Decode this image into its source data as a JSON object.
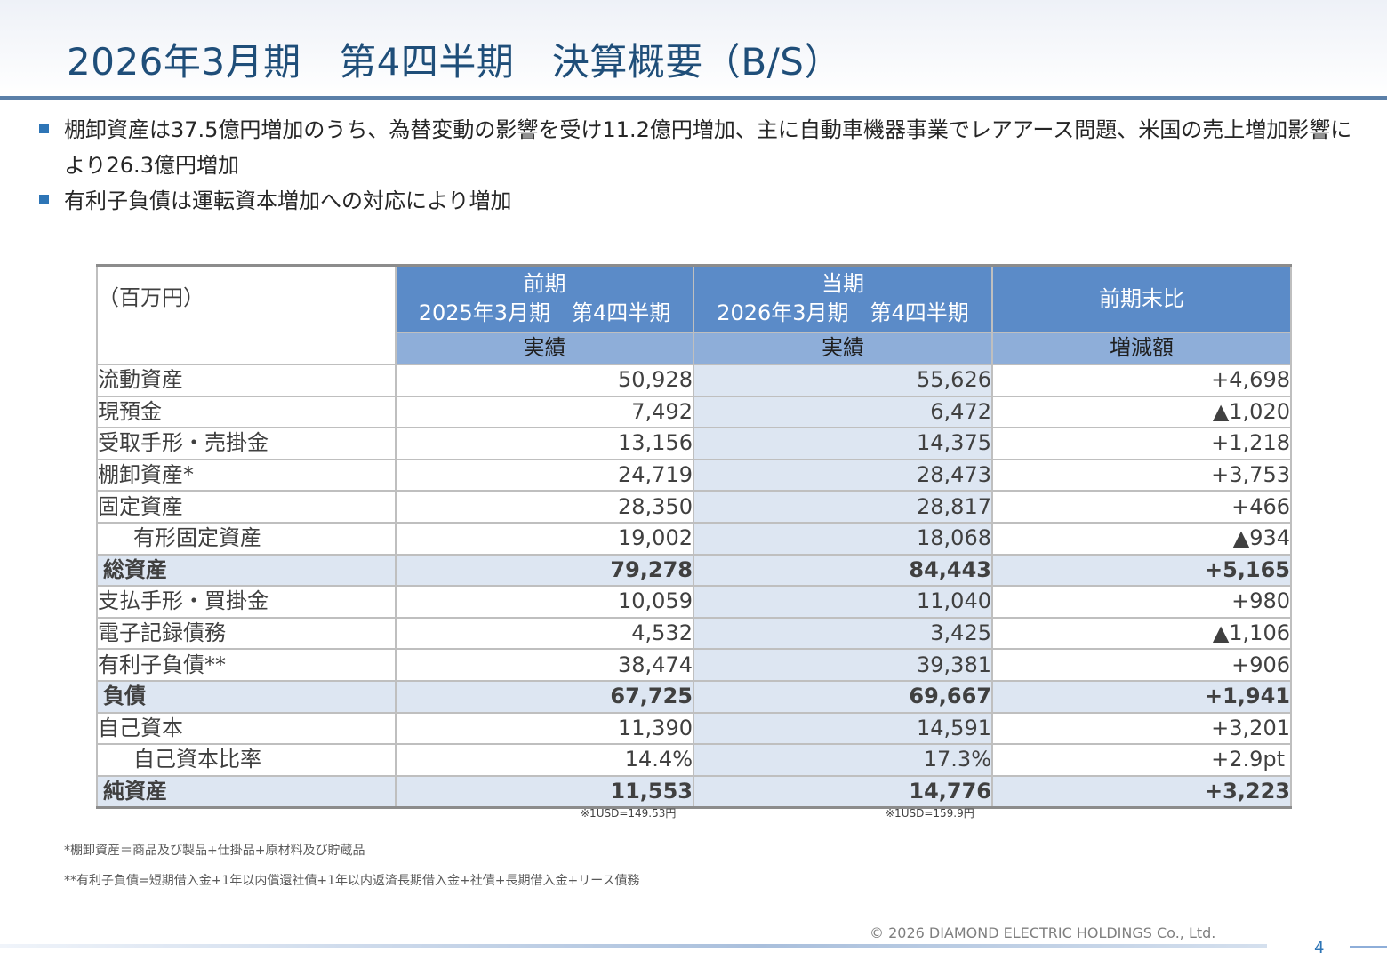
{
  "header": {
    "title": "2026年3月期　第4四半期　決算概要（B/S）"
  },
  "bullets": [
    "棚卸資産は37.5億円増加のうち、為替変動の影響を受け11.2億円増加、主に自動車機器事業でレアアース問題、米国の売上増加影響により26.3億円増加",
    "有利子負債は運転資本増加への対応により増加"
  ],
  "table": {
    "unit_label": "（百万円）",
    "prev_header_1": "前期",
    "prev_header_2": "2025年3月期　第4四半期",
    "curr_header_1": "当期",
    "curr_header_2": "2026年3月期　第4四半期",
    "diff_header": "前期末比",
    "prev_sub": "実績",
    "curr_sub": "実績",
    "diff_sub": "増減額",
    "rows": [
      {
        "label": "流動資産",
        "prev": "50,928",
        "curr": "55,626",
        "diff": "+4,698"
      },
      {
        "label": "現預金",
        "prev": "7,492",
        "curr": "6,472",
        "diff": "▲1,020"
      },
      {
        "label": "受取手形・売掛金",
        "prev": "13,156",
        "curr": "14,375",
        "diff": "+1,218"
      },
      {
        "label": "棚卸資産*",
        "prev": "24,719",
        "curr": "28,473",
        "diff": "+3,753"
      },
      {
        "label": "固定資産",
        "prev": "28,350",
        "curr": "28,817",
        "diff": "+466"
      },
      {
        "label": "有形固定資産",
        "prev": "19,002",
        "curr": "18,068",
        "diff": "▲934"
      },
      {
        "label": "総資産",
        "prev": "79,278",
        "curr": "84,443",
        "diff": "+5,165"
      },
      {
        "label": "支払手形・買掛金",
        "prev": "10,059",
        "curr": "11,040",
        "diff": "+980"
      },
      {
        "label": "電子記録債務",
        "prev": "4,532",
        "curr": "3,425",
        "diff": "▲1,106"
      },
      {
        "label": "有利子負債**",
        "prev": "38,474",
        "curr": "39,381",
        "diff": "+906"
      },
      {
        "label": "負債",
        "prev": "67,725",
        "curr": "69,667",
        "diff": "+1,941"
      },
      {
        "label": "自己資本",
        "prev": "11,390",
        "curr": "14,591",
        "diff": "+3,201"
      },
      {
        "label": "自己資本比率",
        "prev": "14.4%",
        "curr": "17.3%",
        "diff": "+2.9pt"
      },
      {
        "label": "純資産",
        "prev": "11,553",
        "curr": "14,776",
        "diff": "+3,223"
      }
    ]
  },
  "fx_notes": {
    "prev": "※1USD=149.53円",
    "curr": "※1USD=159.9円"
  },
  "footnotes": [
    "*棚卸資産＝商品及び製品+仕掛品+原材料及び貯蔵品",
    "**有利子負債=短期借入金+1年以内償還社債+1年以内返済長期借入金+社債+長期借入金+リース債務"
  ],
  "footer": {
    "copyright": "©  2026  DIAMOND ELECTRIC HOLDINGS Co., Ltd.",
    "page_number": "4"
  }
}
